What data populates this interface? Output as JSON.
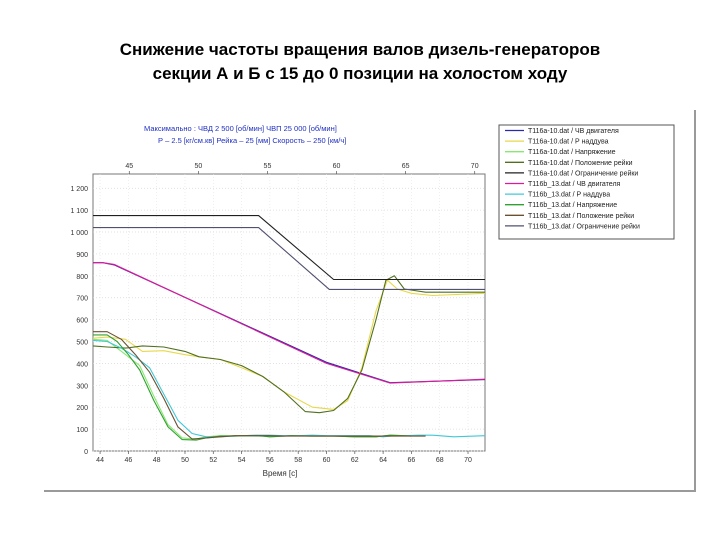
{
  "title": {
    "line1": "Снижение частоты вращения валов дизель-генераторов",
    "line2": "секции А и Б  с 15 до 0 позиции на холостом ходу"
  },
  "colors": {
    "series_A_speed": "#2a2aa8",
    "series_A_boost": "#e8d84a",
    "series_A_voltage": "#88e870",
    "series_A_rack": "#507020",
    "series_A_limit": "#202020",
    "series_B_speed": "#e0189a",
    "series_B_boost": "#40c8d8",
    "series_B_voltage": "#30a030",
    "series_B_rack": "#6b5030",
    "series_B_limit": "#505070"
  },
  "chart_data": {
    "type": "line",
    "header_lines": [
      "Максимально :  ЧВД   2 500  [об/мин]     ЧВП   25 000 [об/мин]",
      "Р – 2.5 [кг/см.кв]    Рейка – 25 [мм]   Скорость – 250 [км/ч]"
    ],
    "xlabel": "Время [с]",
    "x_bottom_ticks": [
      "44",
      "46",
      "48",
      "50",
      "52",
      "54",
      "56",
      "58",
      "60",
      "62",
      "64",
      "66",
      "68",
      "70"
    ],
    "x_top_ticks": [
      "45",
      "50",
      "55",
      "60",
      "65",
      "70"
    ],
    "y_ticks": [
      "0",
      "100",
      "200",
      "300",
      "400",
      "500",
      "600",
      "700",
      "800",
      "900",
      "1 000",
      "1 100",
      "1 200"
    ],
    "xlim": [
      43.5,
      71.2
    ],
    "ylim": [
      0,
      1265
    ],
    "legend_position": "right",
    "series": [
      {
        "name": "T116a-10.dat / ЧВ двигателя",
        "color_key": "series_A_speed",
        "x": [
          43.5,
          44.2,
          45.0,
          60.0,
          64.5,
          71.2
        ],
        "y": [
          860,
          860,
          850,
          405,
          312,
          326
        ]
      },
      {
        "name": "T116a-10.dat / Р наддува",
        "color_key": "series_A_boost",
        "x": [
          43.5,
          44.5,
          45.8,
          47.0,
          48.5,
          50.0,
          51.0,
          52.5,
          54.0,
          55.5,
          57.0,
          59.0,
          60.5,
          61.5,
          62.5,
          63.5,
          64.3,
          65.0,
          66.0,
          67.5,
          71.2
        ],
        "y": [
          515,
          520,
          510,
          455,
          458,
          440,
          430,
          418,
          380,
          340,
          270,
          200,
          190,
          230,
          380,
          640,
          780,
          740,
          720,
          710,
          720
        ]
      },
      {
        "name": "T116a-10.dat / Напряжение",
        "color_key": "series_A_voltage",
        "x": [
          43.5,
          44.5,
          45.2,
          46.0,
          46.8,
          47.8,
          48.8,
          49.8,
          50.8,
          51.5,
          52.5,
          53.5,
          54.5,
          55.5,
          56.0,
          57.5,
          59.0,
          60.5,
          62.0,
          63.5,
          64.5,
          65.5,
          66.0
        ],
        "y": [
          510,
          505,
          470,
          430,
          390,
          250,
          120,
          60,
          55,
          65,
          70,
          70,
          70,
          68,
          65,
          70,
          68,
          68,
          65,
          65,
          72,
          70,
          68
        ]
      },
      {
        "name": "T116a-10.dat / Положение рейки",
        "color_key": "series_A_rack",
        "x": [
          43.5,
          44.5,
          45.8,
          47.0,
          48.5,
          50.0,
          51.0,
          52.5,
          54.0,
          55.5,
          57.0,
          58.5,
          59.5,
          60.5,
          61.5,
          62.5,
          63.5,
          64.2,
          64.8,
          65.5,
          67.0,
          69.0,
          71.2
        ],
        "y": [
          480,
          475,
          470,
          480,
          475,
          455,
          430,
          418,
          390,
          340,
          270,
          180,
          175,
          185,
          240,
          370,
          600,
          780,
          800,
          740,
          725,
          725,
          725
        ]
      },
      {
        "name": "T116a-10.dat / Ограничение рейки",
        "color_key": "series_A_limit",
        "x": [
          43.5,
          55.2,
          60.5,
          71.2
        ],
        "y": [
          1075,
          1075,
          783,
          783
        ]
      },
      {
        "name": "T116b_13.dat / ЧВ двигателя",
        "color_key": "series_B_speed",
        "x": [
          43.5,
          44.2,
          45.0,
          60.0,
          64.5,
          71.2
        ],
        "y": [
          860,
          860,
          852,
          400,
          310,
          328
        ]
      },
      {
        "name": "T116b_13.dat / Р наддува",
        "color_key": "series_B_boost",
        "x": [
          43.5,
          44.5,
          45.5,
          46.5,
          47.5,
          48.5,
          49.5,
          50.5,
          51.5,
          52.5,
          53.5,
          55.0,
          56.0,
          57.0,
          58.0,
          59.0,
          60.0,
          61.0,
          62.0,
          63.0,
          64.0,
          64.8,
          65.5,
          66.5,
          67.5,
          69.0,
          71.2
        ],
        "y": [
          505,
          500,
          470,
          430,
          380,
          260,
          140,
          80,
          65,
          65,
          68,
          72,
          72,
          70,
          70,
          72,
          70,
          70,
          70,
          70,
          65,
          70,
          70,
          72,
          72,
          65,
          70
        ]
      },
      {
        "name": "T116b_13.dat / Напряжение",
        "color_key": "series_B_voltage",
        "x": [
          43.5,
          44.5,
          45.2,
          46.0,
          46.8,
          47.8,
          48.8,
          49.8,
          50.8,
          51.5,
          52.5,
          53.5,
          54.5,
          55.5,
          56.0,
          57.5,
          59.0,
          60.5,
          62.0,
          63.5,
          64.5,
          65.5,
          66.0
        ],
        "y": [
          530,
          530,
          500,
          440,
          370,
          230,
          110,
          52,
          50,
          60,
          68,
          68,
          70,
          68,
          65,
          70,
          68,
          68,
          65,
          65,
          72,
          70,
          68
        ]
      },
      {
        "name": "T116b_13.dat / Положение рейки",
        "color_key": "series_B_rack",
        "x": [
          43.5,
          44.5,
          45.5,
          46.5,
          47.5,
          48.5,
          49.5,
          50.5,
          51.5,
          52.5,
          53.5,
          55.0,
          56.0,
          57.0,
          58.0,
          59.0,
          60.0,
          61.0,
          62.0,
          63.0,
          64.0,
          65.0,
          66.0,
          67.0
        ],
        "y": [
          545,
          545,
          510,
          440,
          360,
          240,
          110,
          55,
          60,
          65,
          70,
          70,
          70,
          68,
          68,
          68,
          68,
          68,
          68,
          68,
          68,
          68,
          68,
          68
        ]
      },
      {
        "name": "T116b_13.dat / Ограничение рейки",
        "color_key": "series_B_limit",
        "x": [
          43.5,
          55.2,
          60.2,
          71.2
        ],
        "y": [
          1020,
          1020,
          738,
          738
        ]
      }
    ]
  }
}
